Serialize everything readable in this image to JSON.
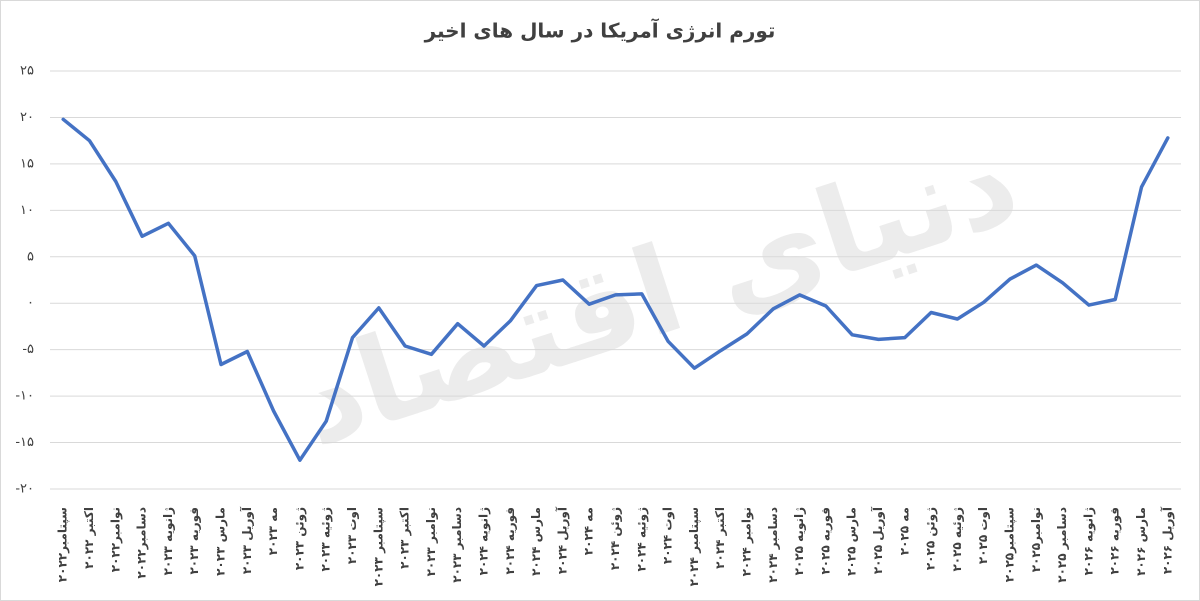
{
  "chart_data": {
    "type": "line",
    "title": "تورم انرژی آمریکا در سال های اخیر",
    "watermark": "دنیای اقتصاد",
    "categories": [
      "سپتامبر۲۰۲۲",
      "اکتبر ۲۰۲۲",
      "نوامبر۲۰۲۲",
      "دسامبر۲۰۲۲",
      "ژانویه ۲۰۲۳",
      "فوریه ۲۰۲۳",
      "مارس ۲۰۲۳",
      "آوریل ۲۰۲۳",
      "مه ۲۰۲۳",
      "ژوئن ۲۰۲۳",
      "ژوئیه ۲۰۲۳",
      "اوت ۲۰۲۳",
      "سپتامبر ۲۰۲۳",
      "اکتبر ۲۰۲۳",
      "نوامبر ۲۰۲۳",
      "دسامبر ۲۰۲۳",
      "ژانویه ۲۰۲۴",
      "فوریه ۲۰۲۴",
      "مارس ۲۰۲۴",
      "آوریل ۲۰۲۴",
      "مه ۲۰۲۴",
      "ژوئن ۲۰۲۴",
      "ژوئیه ۲۰۲۴",
      "اوت ۲۰۲۴",
      "سپتامبر ۲۰۲۴",
      "اکتبر ۲۰۲۴",
      "نوامبر ۲۰۲۴",
      "دسامبر ۲۰۲۴",
      "ژانویه ۲۰۲۵",
      "فوریه ۲۰۲۵",
      "مارس ۲۰۲۵",
      "آوریل ۲۰۲۵",
      "مه ۲۰۲۵",
      "ژوئن ۲۰۲۵",
      "ژوئیه ۲۰۲۵",
      "اوت ۲۰۲۵",
      "سپتامبر۲۰۲۵",
      "نوامبر۲۰۲۵",
      "دسامبر ۲۰۲۵",
      "ژانویه ۲۰۲۶",
      "فوریه ۲۰۲۶",
      "مارس ۲۰۲۶",
      "آوریل ۲۰۲۶"
    ],
    "values": [
      19.8,
      17.5,
      13.1,
      7.2,
      8.6,
      5.1,
      -6.6,
      -5.2,
      -11.6,
      -16.9,
      -12.7,
      -3.7,
      -0.5,
      -4.6,
      -5.5,
      -2.2,
      -4.6,
      -1.9,
      1.9,
      2.5,
      -0.1,
      0.9,
      1.0,
      -4.1,
      -7.0,
      -5.1,
      -3.3,
      -0.6,
      0.9,
      -0.3,
      -3.4,
      -3.9,
      -3.7,
      -1.0,
      -1.7,
      0.1,
      2.6,
      4.1,
      2.2,
      -0.2,
      0.4,
      12.5,
      17.8
    ],
    "color": "#4472c4",
    "ylim": [
      -20,
      25
    ],
    "yticks": [
      {
        "value": -20,
        "label": "-۲۰"
      },
      {
        "value": -15,
        "label": "-۱۵"
      },
      {
        "value": -10,
        "label": "-۱۰"
      },
      {
        "value": -5,
        "label": "-۵"
      },
      {
        "value": 0,
        "label": "۰"
      },
      {
        "value": 5,
        "label": "۵"
      },
      {
        "value": 10,
        "label": "۱۰"
      },
      {
        "value": 15,
        "label": "۱۵"
      },
      {
        "value": 20,
        "label": "۲۰"
      },
      {
        "value": 25,
        "label": "۲۵"
      }
    ],
    "grid": true
  }
}
